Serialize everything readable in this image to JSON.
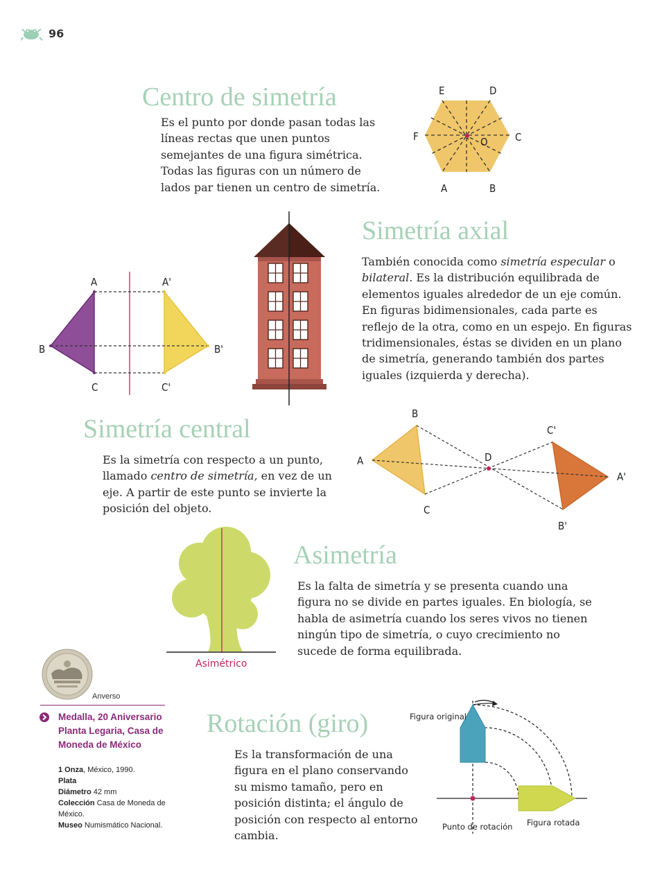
{
  "page": {
    "number": "96"
  },
  "centro": {
    "title": "Centro de simetría",
    "text": "Es el punto por donde pasan todas las líneas rectas que unen puntos semejantes de una figura simétrica. Todas las figuras con un número de lados par tienen un centro de simetría.",
    "labels": {
      "e": "E",
      "d_top": "D",
      "f": "F",
      "o": "O",
      "c": "C",
      "a": "A",
      "b": "B"
    }
  },
  "axial": {
    "title": "Simetría axial",
    "text_1": "También conocida como ",
    "text_em1": "simetría especular",
    "text_2": " o ",
    "text_em2": "bilateral",
    "text_3": ". Es la distribución equilibrada de elementos iguales alrededor de un eje común. En figuras bidimensionales, cada parte es reflejo de la otra, como en un espejo. En figuras tridimensionales, éstas se dividen en un plano de simetría, generando también dos partes iguales (izquierda y derecha).",
    "labels": {
      "a": "A",
      "a2": "A'",
      "b": "B",
      "b2": "B'",
      "c": "C",
      "c2": "C'"
    }
  },
  "central": {
    "title": "Simetría central",
    "text_1": "Es la simetría con respecto a un punto, llamado ",
    "text_em": "centro de simetría,",
    "text_2": " en vez de un eje. A partir de este punto se invierte la posición del objeto.",
    "labels": {
      "b": "B",
      "c2": "C'",
      "a": "A",
      "d": "D",
      "a2": "A'",
      "c": "C",
      "b2": "B'"
    }
  },
  "asimetria": {
    "title": "Asimetría",
    "text": "Es la falta de simetría y se presenta cuando una figura no se divide en partes iguales. En biología, se habla de asimetría cuando los seres vivos no tienen ningún tipo de simetría, o cuyo crecimiento no sucede de forma equilibrada.",
    "caption": "Asimétrico"
  },
  "medalla": {
    "anverso": "Anverso",
    "title": "Medalla, 20 Aniversario Planta Legaria, Casa de Moneda de México",
    "onza_label": "1 Onza",
    "onza_value": ", México, 1990.",
    "plata": "Plata",
    "diametro_label": "Diámetro",
    "diametro_value": " 42 mm",
    "coleccion_label": "Colección",
    "coleccion_value": " Casa de Moneda de México.",
    "museo_label": "Museo",
    "museo_value": " Numismático Nacional."
  },
  "rotacion": {
    "title": "Rotación (giro)",
    "text": "Es la transformación de una figura en el plano conservando su mismo tamaño, pero en posición distinta; el ángulo de posición con respecto al entorno cambia.",
    "label_original": "Figura original",
    "label_punto": "Punto de rotación",
    "label_rotada": "Figura rotada"
  },
  "colors": {
    "green_title": "#a6d1b6",
    "magenta": "#8a2a7a",
    "purple": "#8e4f98",
    "yellow": "#f2d65c",
    "orange": "#d9773b",
    "teal": "#4aa3bb",
    "lime": "#cfd84f",
    "brick": "#c86a5c"
  }
}
